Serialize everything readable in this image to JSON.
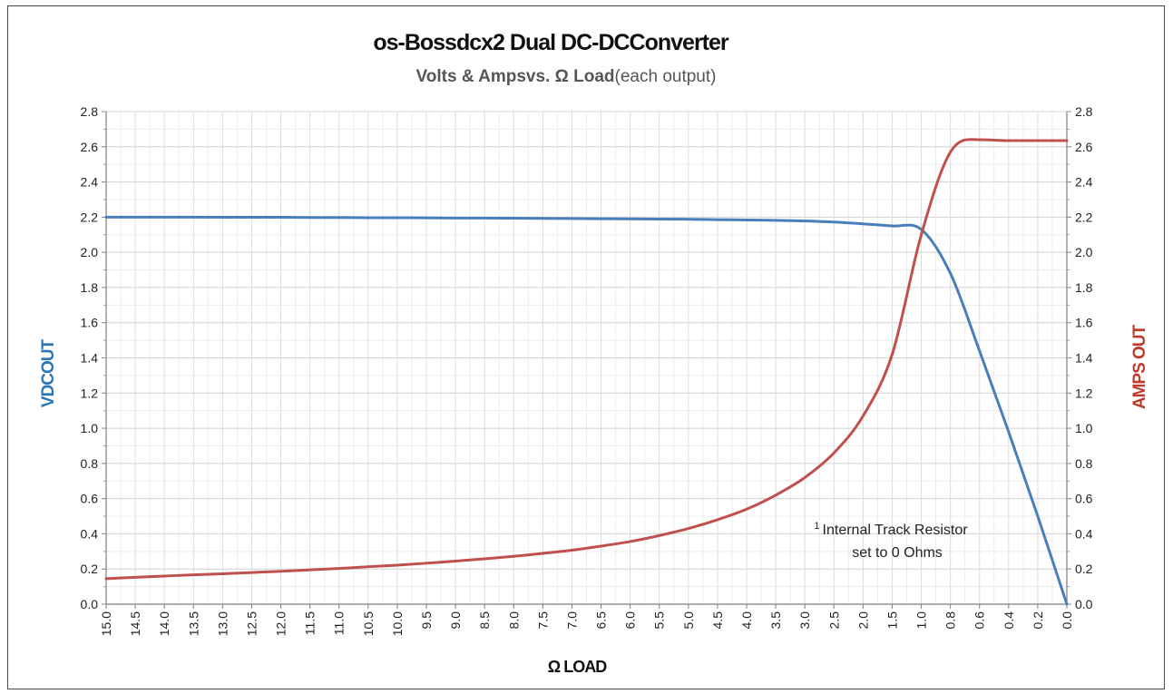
{
  "chart_data": {
    "type": "line",
    "title": "os-Bossdcx2 Dual  DC-DCConverter",
    "subtitle_bold": "Volts & Ampsvs. Ω Load",
    "subtitle_rest": "(each   output)",
    "xlabel": "Ω LOAD",
    "ylabel_left": "VDCOUT",
    "ylabel_right": "AMPS OUT",
    "x_tick_labels": [
      "15.0",
      "14.5",
      "14.0",
      "13.5",
      "13.0",
      "12.5",
      "12.0",
      "11.5",
      "11.0",
      "10.5",
      "10.0",
      "9.5",
      "9.0",
      "8.5",
      "8.0",
      "7.5",
      "7.0",
      "6.5",
      "6.0",
      "5.5",
      "5.0",
      "4.5",
      "4.0",
      "3.5",
      "3.0",
      "2.5",
      "2.0",
      "1.5",
      "1.0",
      "0.8",
      "0.6",
      "0.4",
      "0.2",
      "0.0"
    ],
    "y_tick_labels": [
      "0.0",
      "0.2",
      "0.4",
      "0.6",
      "0.8",
      "1.0",
      "1.2",
      "1.4",
      "1.6",
      "1.8",
      "2.0",
      "2.2",
      "2.4",
      "2.6",
      "2.8"
    ],
    "ylim": [
      0,
      2.8
    ],
    "grid": true,
    "series": [
      {
        "axis": "left",
        "color": "#4a7ebb",
        "x": [
          "15.0",
          "14.5",
          "14.0",
          "13.5",
          "13.0",
          "12.5",
          "12.0",
          "11.5",
          "11.0",
          "10.5",
          "10.0",
          "9.5",
          "9.0",
          "8.5",
          "8.0",
          "7.5",
          "7.0",
          "6.5",
          "6.0",
          "5.5",
          "5.0",
          "4.5",
          "4.0",
          "3.5",
          "3.0",
          "2.5",
          "2.0",
          "1.5",
          "1.0",
          "0.8",
          "0.6",
          "0.4",
          "0.2",
          "0.0"
        ],
        "values": [
          2.2,
          2.2,
          2.2,
          2.2,
          2.199,
          2.199,
          2.199,
          2.198,
          2.198,
          2.197,
          2.197,
          2.196,
          2.195,
          2.195,
          2.194,
          2.193,
          2.192,
          2.191,
          2.19,
          2.189,
          2.188,
          2.186,
          2.184,
          2.182,
          2.178,
          2.172,
          2.162,
          2.15,
          2.13,
          1.88,
          1.44,
          0.98,
          0.5,
          0.0
        ]
      },
      {
        "axis": "right",
        "color": "#c0504d",
        "x": [
          "15.0",
          "14.5",
          "14.0",
          "13.5",
          "13.0",
          "12.5",
          "12.0",
          "11.5",
          "11.0",
          "10.5",
          "10.0",
          "9.5",
          "9.0",
          "8.5",
          "8.0",
          "7.5",
          "7.0",
          "6.5",
          "6.0",
          "5.5",
          "5.0",
          "4.5",
          "4.0",
          "3.5",
          "3.0",
          "2.5",
          "2.0",
          "1.5",
          "1.0",
          "0.8",
          "0.6",
          "0.4",
          "0.2",
          "0.0"
        ],
        "values": [
          0.145,
          0.153,
          0.16,
          0.167,
          0.173,
          0.18,
          0.187,
          0.195,
          0.203,
          0.213,
          0.222,
          0.233,
          0.245,
          0.258,
          0.272,
          0.289,
          0.307,
          0.33,
          0.356,
          0.39,
          0.43,
          0.48,
          0.54,
          0.62,
          0.72,
          0.86,
          1.07,
          1.42,
          2.1,
          2.57,
          2.64,
          2.635,
          2.635,
          2.635
        ]
      }
    ],
    "annotation": {
      "superscript": "1",
      "line1": "Internal Track Resistor",
      "line2": "set to 0 Ohms"
    }
  }
}
